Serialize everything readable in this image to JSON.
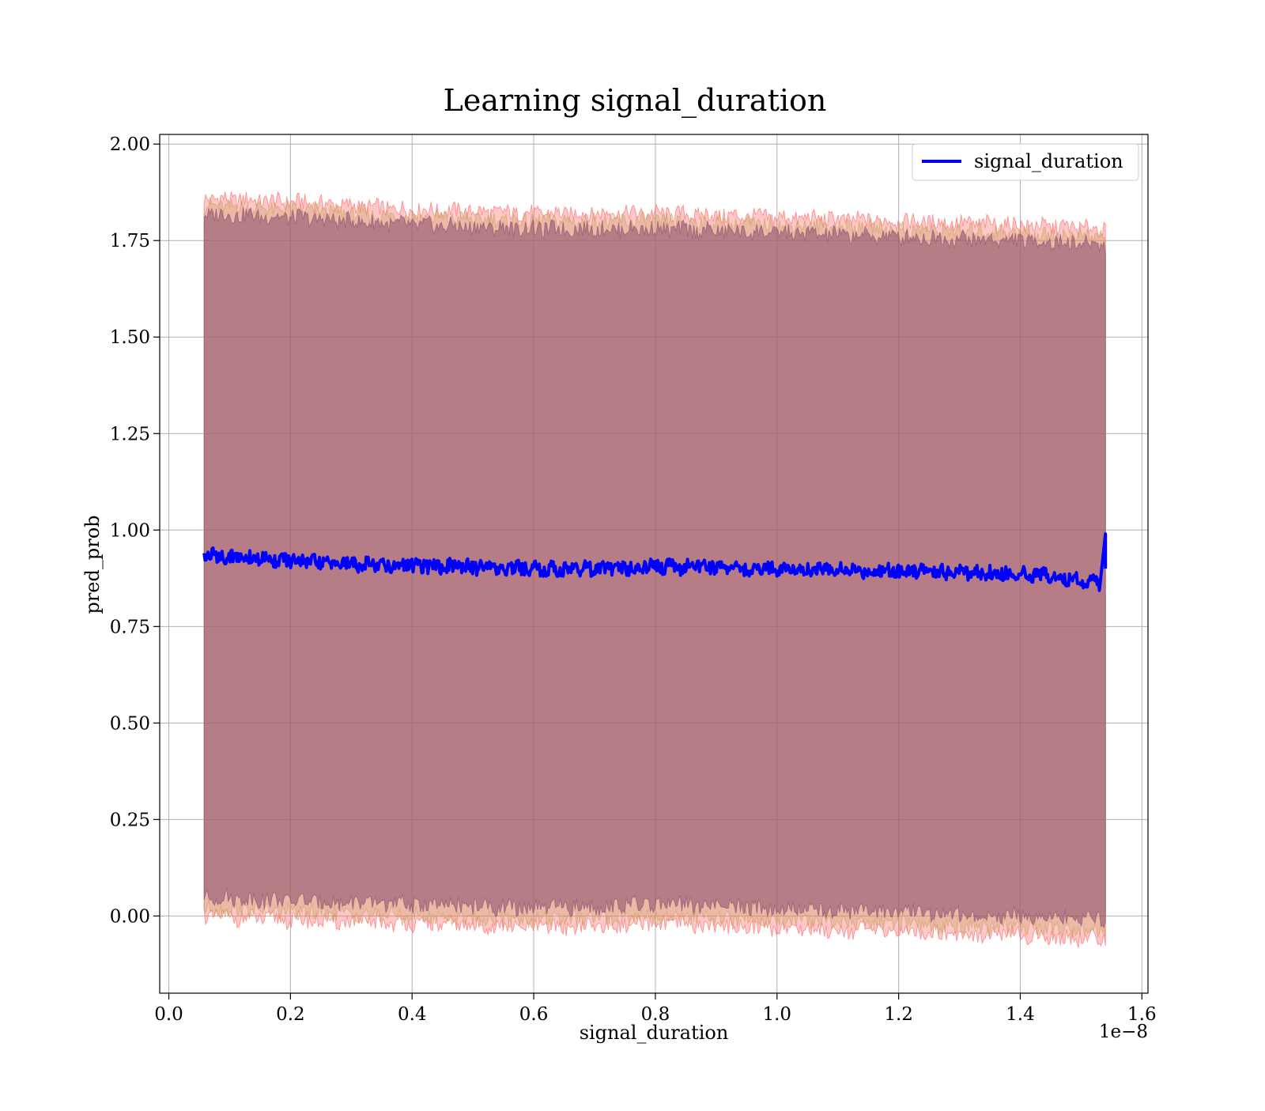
{
  "chart_data": {
    "type": "line",
    "title": "Learning signal_duration",
    "xlabel": "signal_duration",
    "ylabel": "pred_prob",
    "x_offset_label": "1e−8",
    "xlim": [
      -0.015,
      1.61
    ],
    "ylim": [
      -0.2,
      2.025
    ],
    "x_ticks": [
      0.0,
      0.2,
      0.4,
      0.6,
      0.8,
      1.0,
      1.2,
      1.4,
      1.6
    ],
    "x_tick_labels": [
      "0.0",
      "0.2",
      "0.4",
      "0.6",
      "0.8",
      "1.0",
      "1.2",
      "1.4",
      "1.6"
    ],
    "y_ticks": [
      0.0,
      0.25,
      0.5,
      0.75,
      1.0,
      1.25,
      1.5,
      1.75,
      2.0
    ],
    "y_tick_labels": [
      "0.00",
      "0.25",
      "0.50",
      "0.75",
      "1.00",
      "1.25",
      "1.50",
      "1.75",
      "2.00"
    ],
    "grid": true,
    "legend_position": "top-right",
    "series": [
      {
        "name": "signal_duration",
        "color": "#0000ff",
        "x": [
          0.058,
          0.1,
          0.15,
          0.2,
          0.25,
          0.3,
          0.35,
          0.4,
          0.45,
          0.5,
          0.55,
          0.6,
          0.65,
          0.7,
          0.75,
          0.8,
          0.85,
          0.9,
          0.95,
          1.0,
          1.05,
          1.1,
          1.15,
          1.2,
          1.25,
          1.3,
          1.35,
          1.4,
          1.45,
          1.5,
          1.53,
          1.54
        ],
        "y": [
          0.935,
          0.93,
          0.925,
          0.92,
          0.915,
          0.912,
          0.91,
          0.908,
          0.906,
          0.904,
          0.902,
          0.9,
          0.898,
          0.9,
          0.902,
          0.905,
          0.903,
          0.905,
          0.9,
          0.9,
          0.898,
          0.895,
          0.893,
          0.895,
          0.892,
          0.89,
          0.888,
          0.885,
          0.882,
          0.87,
          0.86,
          0.99
        ]
      }
    ],
    "bands": [
      {
        "color": "#ff6060",
        "x": [
          0.058,
          0.2,
          0.4,
          0.6,
          0.8,
          1.0,
          1.2,
          1.4,
          1.54
        ],
        "upper": [
          1.86,
          1.85,
          1.83,
          1.82,
          1.82,
          1.81,
          1.8,
          1.79,
          1.78
        ],
        "lower": [
          0.0,
          -0.01,
          -0.02,
          -0.03,
          -0.02,
          -0.03,
          -0.04,
          -0.05,
          -0.06
        ]
      },
      {
        "color": "#c8a060",
        "x": [
          0.058,
          0.2,
          0.4,
          0.6,
          0.8,
          1.0,
          1.2,
          1.4,
          1.54
        ],
        "upper": [
          1.84,
          1.83,
          1.81,
          1.8,
          1.8,
          1.79,
          1.78,
          1.77,
          1.76
        ],
        "lower": [
          0.02,
          0.01,
          0.0,
          -0.01,
          0.0,
          -0.01,
          -0.02,
          -0.03,
          -0.04
        ]
      },
      {
        "color": "#8a4a70",
        "x": [
          0.058,
          0.2,
          0.4,
          0.6,
          0.8,
          1.0,
          1.2,
          1.4,
          1.54
        ],
        "upper": [
          1.82,
          1.81,
          1.79,
          1.78,
          1.78,
          1.77,
          1.76,
          1.75,
          1.74
        ],
        "lower": [
          0.05,
          0.04,
          0.03,
          0.02,
          0.03,
          0.02,
          0.01,
          0.0,
          -0.01
        ]
      }
    ]
  }
}
